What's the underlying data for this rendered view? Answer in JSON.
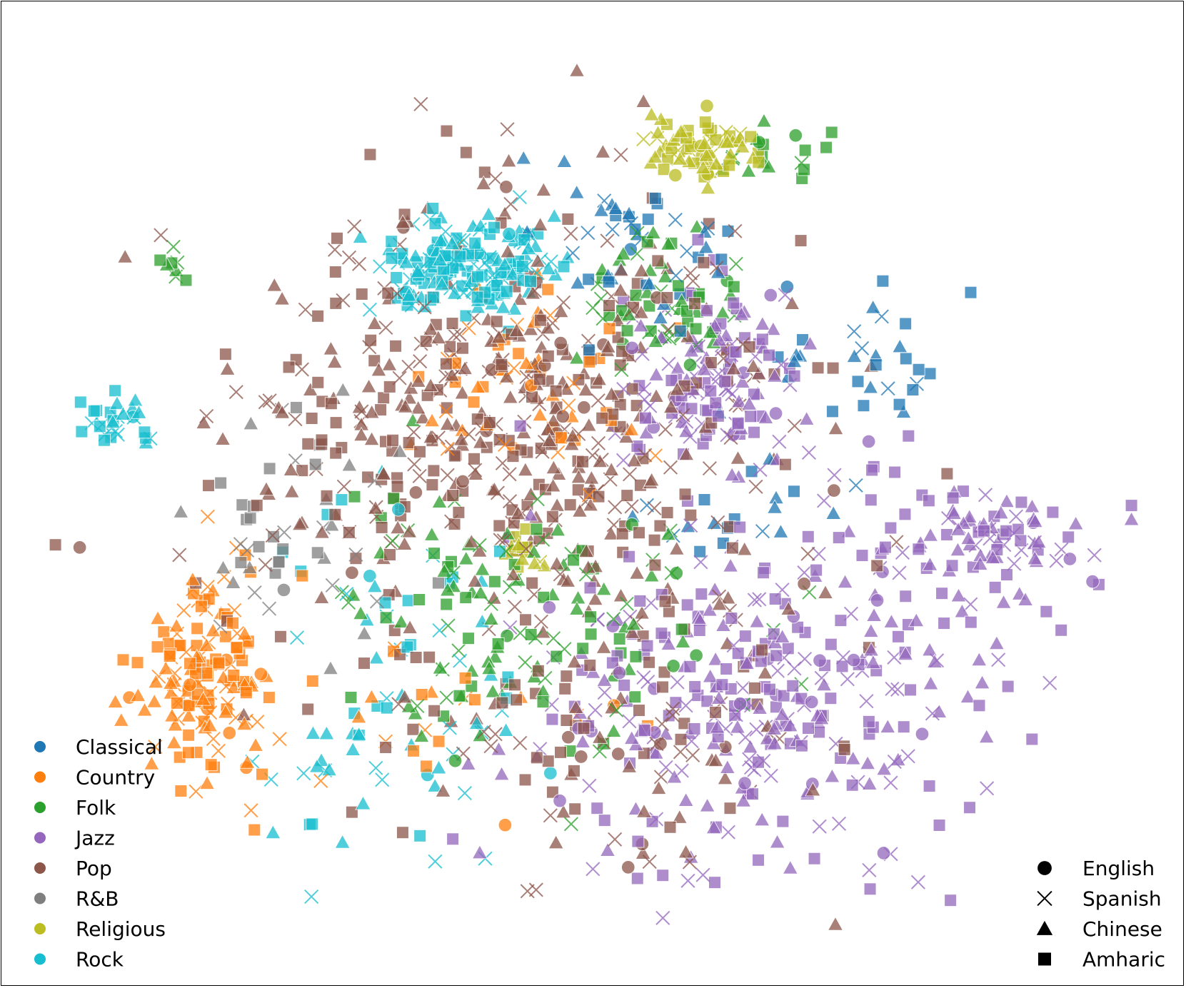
{
  "chart_data": {
    "type": "scatter",
    "title": "",
    "xlabel": "",
    "ylabel": "",
    "xlim": [
      0,
      100
    ],
    "ylim": [
      0,
      100
    ],
    "grid": false,
    "axes_visible": false,
    "legends": [
      {
        "placement": "lower-left",
        "channel": "color",
        "entries": [
          {
            "label": "Classical",
            "color": "#1f77b4"
          },
          {
            "label": "Country",
            "color": "#ff7f0e"
          },
          {
            "label": "Folk",
            "color": "#2ca02c"
          },
          {
            "label": "Jazz",
            "color": "#9467bd"
          },
          {
            "label": "Pop",
            "color": "#8c564b"
          },
          {
            "label": "R&B",
            "color": "#7f7f7f"
          },
          {
            "label": "Religious",
            "color": "#bcbd22"
          },
          {
            "label": "Rock",
            "color": "#17becf"
          }
        ]
      },
      {
        "placement": "lower-right",
        "channel": "marker",
        "entries": [
          {
            "label": "English",
            "marker": "circle"
          },
          {
            "label": "Spanish",
            "marker": "x"
          },
          {
            "label": "Chinese",
            "marker": "triangle"
          },
          {
            "label": "Amharic",
            "marker": "square"
          }
        ]
      }
    ],
    "clusters": [
      {
        "genre": "Classical",
        "center": [
          54,
          77
        ],
        "spread": [
          5,
          6
        ],
        "count": 45
      },
      {
        "genre": "Classical",
        "center": [
          74,
          65
        ],
        "spread": [
          6,
          5
        ],
        "count": 30
      },
      {
        "genre": "Classical",
        "center": [
          66,
          48
        ],
        "spread": [
          6,
          4
        ],
        "count": 20
      },
      {
        "genre": "Country",
        "center": [
          15,
          30
        ],
        "spread": [
          3.5,
          8
        ],
        "count": 150
      },
      {
        "genre": "Country",
        "center": [
          45,
          63
        ],
        "spread": [
          8,
          6
        ],
        "count": 55
      },
      {
        "genre": "Country",
        "center": [
          38,
          26
        ],
        "spread": [
          12,
          8
        ],
        "count": 25
      },
      {
        "genre": "Folk",
        "center": [
          44,
          36
        ],
        "spread": [
          10,
          9
        ],
        "count": 130
      },
      {
        "genre": "Folk",
        "center": [
          57,
          72
        ],
        "spread": [
          4,
          5
        ],
        "count": 60
      },
      {
        "genre": "Folk",
        "center": [
          66,
          88
        ],
        "spread": [
          3,
          2
        ],
        "count": 18
      },
      {
        "genre": "Folk",
        "center": [
          12,
          75
        ],
        "spread": [
          1,
          1
        ],
        "count": 8
      },
      {
        "genre": "Jazz",
        "center": [
          65,
          28
        ],
        "spread": [
          12,
          12
        ],
        "count": 330
      },
      {
        "genre": "Jazz",
        "center": [
          61,
          62
        ],
        "spread": [
          5,
          6
        ],
        "count": 140
      },
      {
        "genre": "Jazz",
        "center": [
          86,
          44
        ],
        "spread": [
          7,
          4
        ],
        "count": 90
      },
      {
        "genre": "Pop",
        "center": [
          42,
          58
        ],
        "spread": [
          15,
          16
        ],
        "count": 540
      },
      {
        "genre": "Pop",
        "center": [
          52,
          25
        ],
        "spread": [
          12,
          10
        ],
        "count": 110
      },
      {
        "genre": "R&B",
        "center": [
          23,
          45
        ],
        "spread": [
          6,
          8
        ],
        "count": 45
      },
      {
        "genre": "Religious",
        "center": [
          60,
          88
        ],
        "spread": [
          3,
          2
        ],
        "count": 70
      },
      {
        "genre": "Religious",
        "center": [
          44,
          44
        ],
        "spread": [
          1.5,
          1
        ],
        "count": 15
      },
      {
        "genre": "Rock",
        "center": [
          38,
          75
        ],
        "spread": [
          5,
          3
        ],
        "count": 170
      },
      {
        "genre": "Rock",
        "center": [
          7,
          58
        ],
        "spread": [
          2,
          2
        ],
        "count": 28
      },
      {
        "genre": "Rock",
        "center": [
          32,
          33
        ],
        "spread": [
          8,
          10
        ],
        "count": 45
      },
      {
        "genre": "Rock",
        "center": [
          30,
          20
        ],
        "spread": [
          8,
          6
        ],
        "count": 25
      }
    ],
    "marker_mix": {
      "English": 0.05,
      "Spanish": 0.25,
      "Chinese": 0.34,
      "Amharic": 0.36
    }
  }
}
